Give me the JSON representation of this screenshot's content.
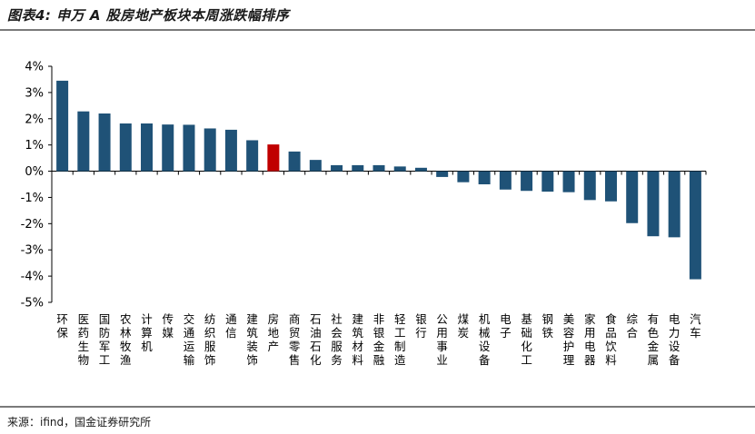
{
  "figure": {
    "title": "图表4:  申万 A 股房地产板块本周涨跌幅排序",
    "source": "来源：ifind，国金证券研究所"
  },
  "colors": {
    "bar": "#1f5277",
    "highlight": "#c00000",
    "axis": "#000000"
  },
  "chart_data": {
    "type": "bar",
    "categories": [
      "环保",
      "医药生物",
      "国防军工",
      "农林牧渔",
      "计算机",
      "传媒",
      "交通运输",
      "纺织服饰",
      "通信",
      "建筑装饰",
      "房地产",
      "商贸零售",
      "石油石化",
      "社会服务",
      "建筑材料",
      "非银金融",
      "轻工制造",
      "银行",
      "公用事业",
      "煤炭",
      "机械设备",
      "电子",
      "基础化工",
      "钢铁",
      "美容护理",
      "家用电器",
      "食品饮料",
      "综合",
      "有色金属",
      "电力设备",
      "汽车"
    ],
    "values": [
      3.45,
      2.28,
      2.2,
      1.82,
      1.82,
      1.78,
      1.77,
      1.63,
      1.58,
      1.18,
      1.02,
      0.75,
      0.43,
      0.23,
      0.23,
      0.23,
      0.18,
      0.13,
      -0.22,
      -0.42,
      -0.5,
      -0.7,
      -0.75,
      -0.78,
      -0.8,
      -1.1,
      -1.15,
      -1.98,
      -2.48,
      -2.52,
      -4.12
    ],
    "highlight_category": "房地产",
    "yticks": [
      "4%",
      "3%",
      "2%",
      "1%",
      "0%",
      "-1%",
      "-2%",
      "-3%",
      "-4%",
      "-5%"
    ],
    "ylim": [
      -5,
      4
    ]
  }
}
